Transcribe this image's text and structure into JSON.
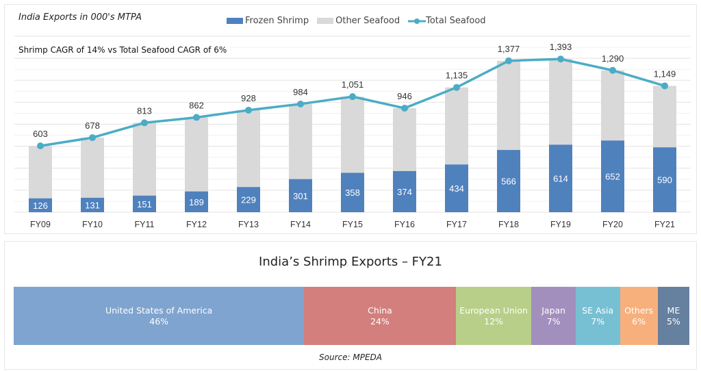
{
  "chart_data": [
    {
      "type": "bar",
      "stacked": true,
      "title": "",
      "subtitle": "India Exports in 000's MTPA",
      "annotation": "Shrimp CAGR of 14% vs Total Seafood CAGR of 6%",
      "categories": [
        "FY09",
        "FY10",
        "FY11",
        "FY12",
        "FY13",
        "FY14",
        "FY15",
        "FY16",
        "FY17",
        "FY18",
        "FY19",
        "FY20",
        "FY21"
      ],
      "series": [
        {
          "name": "Frozen Shrimp",
          "type": "bar",
          "color": "#4f81bd",
          "values": [
            126,
            131,
            151,
            189,
            229,
            301,
            358,
            374,
            434,
            566,
            614,
            652,
            590
          ]
        },
        {
          "name": "Other Seafood",
          "type": "bar",
          "color": "#d9d9d9",
          "values": [
            477,
            547,
            662,
            673,
            699,
            683,
            693,
            572,
            701,
            811,
            779,
            638,
            559
          ]
        },
        {
          "name": "Total Seafood",
          "type": "line",
          "color": "#4bacc6",
          "values": [
            603,
            678,
            813,
            862,
            928,
            984,
            1051,
            946,
            1135,
            1377,
            1393,
            1290,
            1149
          ]
        }
      ],
      "ylim": [
        0,
        1600
      ],
      "grid": true,
      "legend": "top"
    },
    {
      "type": "bar",
      "stacked": true,
      "orientation": "horizontal",
      "title": "India’s Shrimp Exports – FY21",
      "categories": [
        "United States of America",
        "China",
        "European Union",
        "Japan",
        "SE Asia",
        "Others",
        "ME"
      ],
      "values": [
        46,
        24,
        12,
        7,
        7,
        6,
        5
      ],
      "labels": [
        "46%",
        "24%",
        "12%",
        "7%",
        "7%",
        "6%",
        "5%"
      ],
      "colors": [
        "#7fa4cf",
        "#d27f7d",
        "#b7cf88",
        "#a28fbd",
        "#77c0d3",
        "#f7b07b",
        "#66809f"
      ],
      "source": "Source: MPEDA"
    }
  ]
}
